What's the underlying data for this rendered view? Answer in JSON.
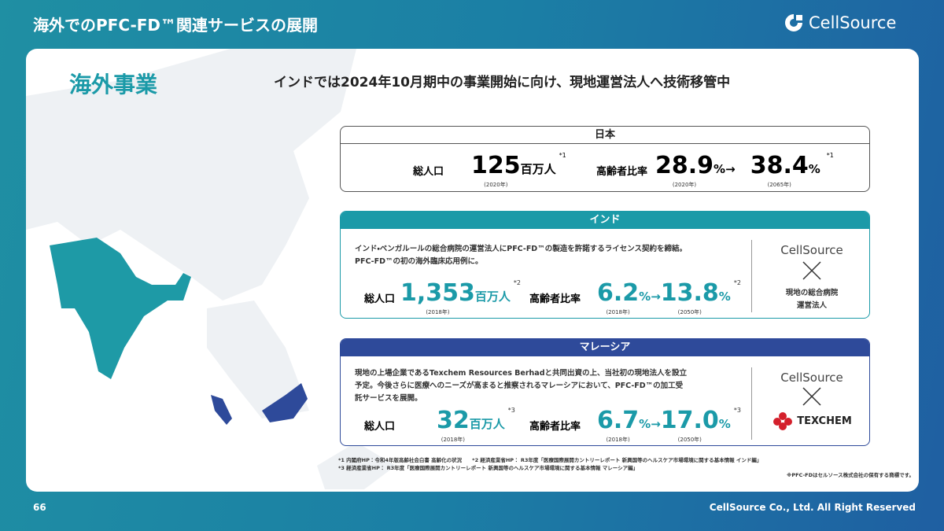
{
  "header": {
    "title": "海外でのPFC-FD™関連サービスの展開",
    "logo": "CellSource"
  },
  "section": {
    "title": "海外事業",
    "headline": "インドでは2024年10月期中の事業開始に向け、現地運営法人へ技術移管中"
  },
  "japan": {
    "label": "日本",
    "population_label": "総人口",
    "population": "125",
    "population_unit": "百万人",
    "population_note": "*1",
    "population_year": "(2020年)",
    "aging_label": "高齢者比率",
    "aging_from": "28.9",
    "aging_from_year": "(2020年)",
    "arrow": "→",
    "aging_to": "38.4",
    "aging_to_year": "(2065年)",
    "unit": "%",
    "aging_note": "*1"
  },
  "india": {
    "label": "インド",
    "description": [
      "インド・ベンガルールの総合病院の運営法人にPFC-FD™の製造を許諾するライセンス契約を締結。",
      "PFC-FD™の初の海外臨床応用例に。"
    ],
    "population_label": "総人口",
    "population": "1,353",
    "population_unit": "百万人",
    "population_note": "*2",
    "population_year": "(2018年)",
    "aging_label": "高齢者比率",
    "aging_from": "6.2",
    "aging_from_year": "(2018年)",
    "arrow": "→",
    "aging_to": "13.8",
    "aging_to_year": "(2050年)",
    "unit": "%",
    "aging_note": "*2",
    "partner_logo": "CellSource",
    "partner": [
      "現地の総合病院",
      "運営法人"
    ]
  },
  "malaysia": {
    "label": "マレーシア",
    "description": [
      "現地の上場企業であるTexchem Resources Berhadと共同出資の上、当社初の現地法人を設立",
      "予定。今後さらに医療へのニーズが高まると推察されるマレーシアにおいて、PFC-FD™の加工受",
      "託サービスを展開。"
    ],
    "population_label": "総人口",
    "population": "32",
    "population_unit": "百万人",
    "population_note": "*3",
    "population_year": "(2018年)",
    "aging_label": "高齢者比率",
    "aging_from": "6.7",
    "aging_from_year": "(2018年)",
    "arrow": "→",
    "aging_to": "17.0",
    "aging_to_year": "(2050年)",
    "unit": "%",
    "aging_note": "*3",
    "partner_logo": "CellSource",
    "partner": "TEXCHEM"
  },
  "footnotes": [
    "*1 内閣府HP：令和4年版高齢社会白書 高齢化の状況　　*2 経済産業省HP： R3年度「医療国際展開カントリーレポート 新興国等のヘルスケア市場環境に関する基本情報 インド編」",
    "*3 経済産業省HP： R3年度「医療国際展開カントリーレポート 新興国等のヘルスケア市場環境に関する基本情報 マレーシア編」"
  ],
  "trademark_note": "※PFC-FDはセルソース株式会社の保有する商標です。",
  "footer": {
    "page": "66",
    "copyright": "CellSource Co., Ltd. All Right Reserved"
  }
}
